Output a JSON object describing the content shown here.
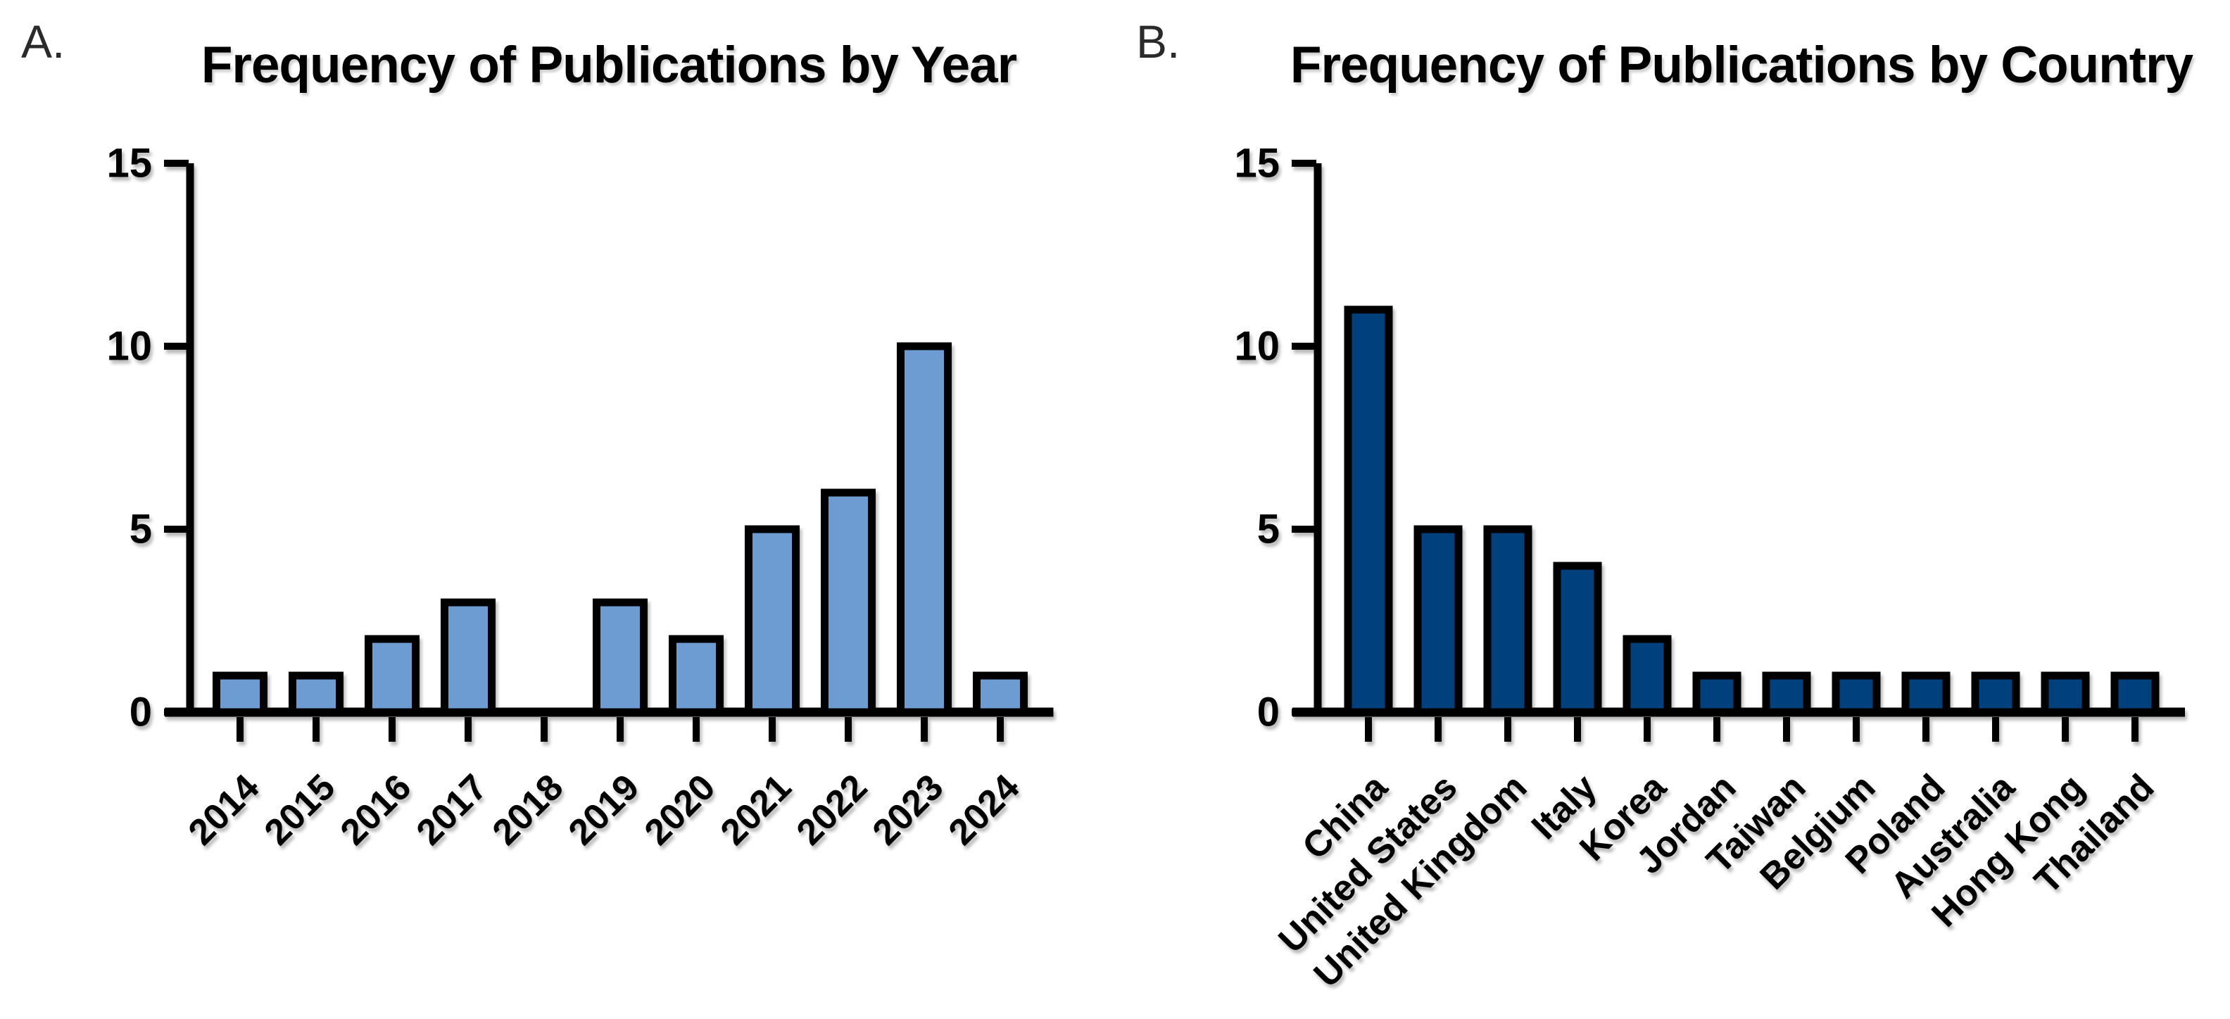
{
  "figure": {
    "background": "#ffffff",
    "panels": [
      {
        "label": "A.",
        "title": "Frequency of Publications by Year"
      },
      {
        "label": "B.",
        "title": "Frequency of Publications by Country"
      }
    ]
  },
  "chart_data": [
    {
      "type": "bar",
      "panel_label": "A.",
      "title": "Frequency of Publications by Year",
      "categories": [
        "2014",
        "2015",
        "2016",
        "2017",
        "2018",
        "2019",
        "2020",
        "2021",
        "2022",
        "2023",
        "2024"
      ],
      "values": [
        1,
        1,
        2,
        3,
        0,
        3,
        2,
        5,
        6,
        10,
        1
      ],
      "xlabel": "",
      "ylabel": "",
      "ylim": [
        0,
        15
      ],
      "yticks": [
        0,
        5,
        10,
        15
      ],
      "grid": false,
      "legend": "none",
      "x_tick_rotation": -45,
      "bar_fill": "#6C9CD2",
      "bar_stroke": "#000000",
      "axis_color": "#000000"
    },
    {
      "type": "bar",
      "panel_label": "B.",
      "title": "Frequency of Publications by Country",
      "categories": [
        "China",
        "United States",
        "United Kingdom",
        "Italy",
        "Korea",
        "Jordan",
        "Taiwan",
        "Belgium",
        "Poland",
        "Australia",
        "Hong Kong",
        "Thailand"
      ],
      "values": [
        11,
        5,
        5,
        4,
        2,
        1,
        1,
        1,
        1,
        1,
        1,
        1
      ],
      "xlabel": "",
      "ylabel": "",
      "ylim": [
        0,
        15
      ],
      "yticks": [
        0,
        5,
        10,
        15
      ],
      "grid": false,
      "legend": "none",
      "x_tick_rotation": -45,
      "bar_fill": "#053F7D",
      "bar_stroke": "#000000",
      "axis_color": "#000000"
    }
  ]
}
